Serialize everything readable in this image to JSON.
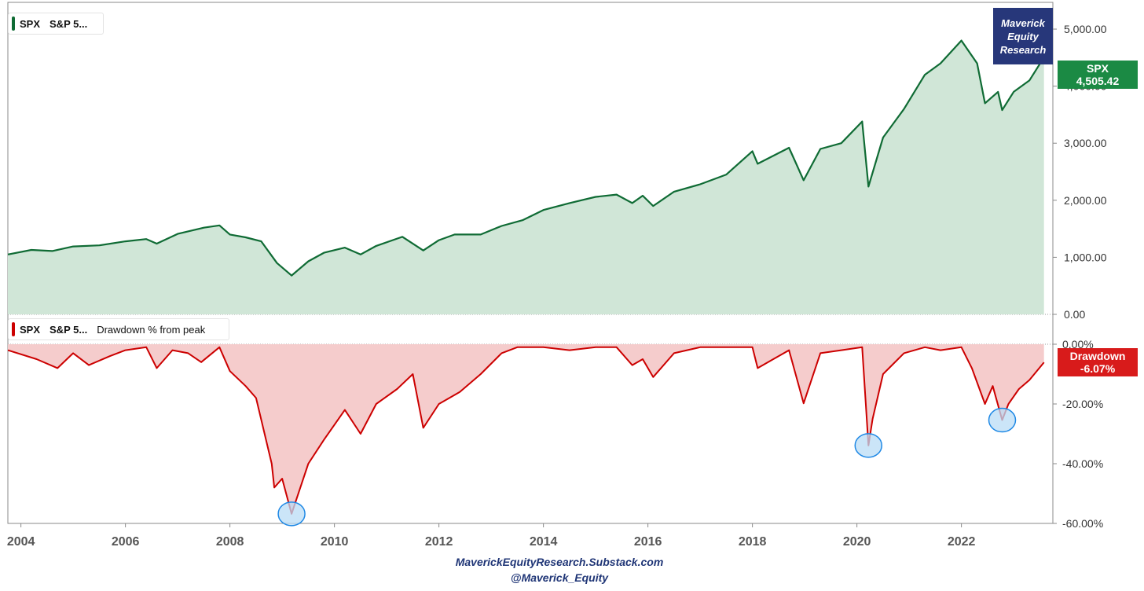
{
  "branding": {
    "line1": "Maverick",
    "line2": "Equity",
    "line3": "Research",
    "footer_site": "MaverickEquityResearch.Substack.com",
    "footer_handle": "@Maverick_Equity"
  },
  "legend_top": {
    "symbol": "SPX",
    "name": "S&P 5..."
  },
  "legend_bottom": {
    "symbol": "SPX",
    "name": "S&P 5...",
    "indicator": "Drawdown % from peak"
  },
  "price_tag": {
    "label": "SPX",
    "value": "4,505.42"
  },
  "drawdown_tag": {
    "label": "Drawdown",
    "value": "-6.07%"
  },
  "colors": {
    "price_line": "#0f6b34",
    "price_fill": "#d0e6d7",
    "price_tag_bg": "#1b8a44",
    "drawdown_line": "#cc0000",
    "drawdown_fill": "#f5cccc",
    "drawdown_tag_bg": "#d81b1b",
    "highlight_fill": "#b9dcf5",
    "highlight_stroke": "#1e88e5"
  },
  "chart_data": [
    {
      "type": "area",
      "series": [
        {
          "name": "SPX",
          "x": [
            2003.75,
            2004.2,
            2004.6,
            2005.0,
            2005.5,
            2006.0,
            2006.4,
            2006.6,
            2007.0,
            2007.5,
            2007.8,
            2008.0,
            2008.3,
            2008.6,
            2008.9,
            2009.18,
            2009.5,
            2009.8,
            2010.2,
            2010.5,
            2010.8,
            2011.3,
            2011.7,
            2012.0,
            2012.3,
            2012.8,
            2013.2,
            2013.6,
            2014.0,
            2014.5,
            2015.0,
            2015.4,
            2015.7,
            2015.9,
            2016.1,
            2016.5,
            2017.0,
            2017.5,
            2018.0,
            2018.1,
            2018.7,
            2018.98,
            2019.3,
            2019.7,
            2020.1,
            2020.22,
            2020.5,
            2020.9,
            2021.3,
            2021.6,
            2022.0,
            2022.3,
            2022.45,
            2022.7,
            2022.78,
            2023.0,
            2023.3,
            2023.58
          ],
          "y": [
            1050,
            1130,
            1110,
            1190,
            1210,
            1280,
            1320,
            1240,
            1410,
            1520,
            1560,
            1400,
            1350,
            1280,
            900,
            680,
            930,
            1080,
            1170,
            1050,
            1200,
            1360,
            1120,
            1300,
            1400,
            1400,
            1550,
            1650,
            1830,
            1950,
            2060,
            2100,
            1950,
            2080,
            1900,
            2150,
            2280,
            2450,
            2860,
            2640,
            2920,
            2350,
            2900,
            3000,
            3380,
            2240,
            3100,
            3600,
            4200,
            4400,
            4800,
            4400,
            3700,
            3900,
            3580,
            3900,
            4100,
            4505.42
          ]
        }
      ],
      "xlim": [
        2003.75,
        2023.75
      ],
      "ylim": [
        0,
        5400
      ],
      "yticks": [
        "5,000.00",
        "4,000.00",
        "3,000.00",
        "2,000.00",
        "1,000.00",
        "0.00"
      ],
      "ytick_values": [
        5000,
        4000,
        3000,
        2000,
        1000,
        0
      ]
    },
    {
      "type": "area",
      "series": [
        {
          "name": "Drawdown",
          "x": [
            2003.75,
            2004.3,
            2004.7,
            2005.0,
            2005.3,
            2005.7,
            2006.0,
            2006.4,
            2006.6,
            2006.9,
            2007.2,
            2007.45,
            2007.8,
            2008.0,
            2008.3,
            2008.5,
            2008.8,
            2008.85,
            2009.0,
            2009.18,
            2009.5,
            2009.8,
            2010.2,
            2010.5,
            2010.8,
            2011.2,
            2011.5,
            2011.7,
            2012.0,
            2012.4,
            2012.8,
            2013.2,
            2013.5,
            2014.0,
            2014.5,
            2015.0,
            2015.4,
            2015.7,
            2015.9,
            2016.1,
            2016.5,
            2017.0,
            2017.5,
            2018.0,
            2018.1,
            2018.4,
            2018.7,
            2018.98,
            2019.3,
            2019.7,
            2020.1,
            2020.22,
            2020.3,
            2020.5,
            2020.9,
            2021.3,
            2021.6,
            2022.0,
            2022.2,
            2022.45,
            2022.6,
            2022.78,
            2022.9,
            2023.1,
            2023.3,
            2023.58
          ],
          "y": [
            -2,
            -5,
            -8,
            -3,
            -7,
            -4,
            -2,
            -1,
            -8,
            -2,
            -3,
            -6,
            -1,
            -9,
            -14,
            -18,
            -40,
            -48,
            -45,
            -56.8,
            -40,
            -32,
            -22,
            -30,
            -20,
            -15,
            -10,
            -28,
            -20,
            -16,
            -10,
            -3,
            -1,
            -1,
            -2,
            -1,
            -1,
            -7,
            -5,
            -11,
            -3,
            -1,
            -1,
            -1,
            -8,
            -5,
            -2,
            -19.8,
            -3,
            -2,
            -1,
            -33.9,
            -25,
            -10,
            -3,
            -1,
            -2,
            -1,
            -8,
            -20,
            -14,
            -25.4,
            -20,
            -15,
            -12,
            -6.07
          ]
        }
      ],
      "xlim": [
        2003.75,
        2023.75
      ],
      "ylim": [
        -60,
        0
      ],
      "yticks": [
        "0.00%",
        "-20.00%",
        "-40.00%",
        "-60.00%"
      ],
      "ytick_values": [
        0,
        -20,
        -40,
        -60
      ],
      "highlights": [
        {
          "x": 2009.18,
          "y": -56.8
        },
        {
          "x": 2020.22,
          "y": -33.9
        },
        {
          "x": 2022.78,
          "y": -25.4
        }
      ]
    }
  ],
  "x_axis": {
    "tick_labels": [
      "2004",
      "2006",
      "2008",
      "2010",
      "2012",
      "2014",
      "2016",
      "2018",
      "2020",
      "2022"
    ],
    "tick_values": [
      2004,
      2006,
      2008,
      2010,
      2012,
      2014,
      2016,
      2018,
      2020,
      2022
    ]
  }
}
